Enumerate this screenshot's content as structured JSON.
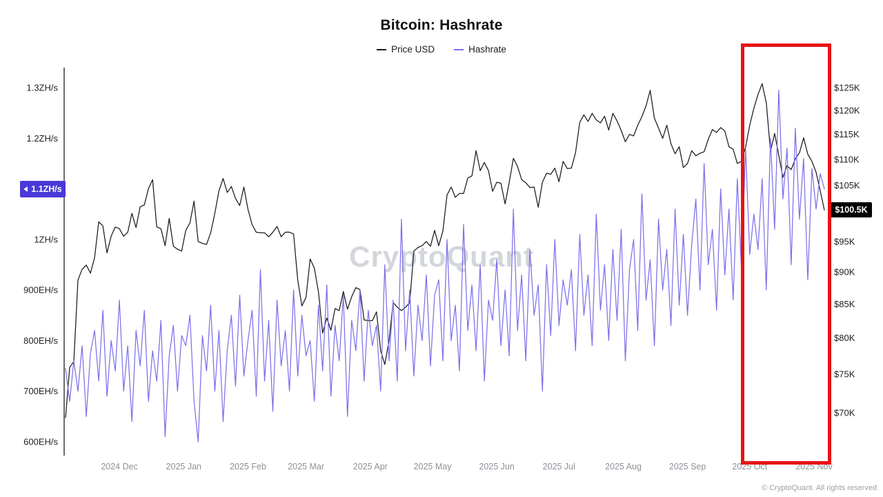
{
  "watermark": {
    "text": "CryptoQuant"
  },
  "footer": {
    "text": "© CryptoQuant. All rights reserved"
  },
  "colors": {
    "background": "#ffffff",
    "price_line": "#1a1a1a",
    "hashrate_line": "#7c70e9",
    "hashrate_badge": "#4a39d8",
    "price_badge": "#000000",
    "highlight_box": "#e81414",
    "axis_line": "#3c3c3c"
  },
  "chart_data": {
    "type": "line",
    "title": "Bitcoin: Hashrate",
    "x_start": "2024 Nov",
    "x_end": "2025 Nov",
    "interval_days": 2,
    "legend_position": "top-center",
    "grid": false,
    "axes": {
      "left": {
        "title": "Hashrate",
        "scale": "linear",
        "unit": "EH/s",
        "domain": [
          600,
          1300
        ],
        "ticks": [
          {
            "value": 600,
            "label": "600EH/s"
          },
          {
            "value": 700,
            "label": "700EH/s"
          },
          {
            "value": 800,
            "label": "800EH/s"
          },
          {
            "value": 900,
            "label": "900EH/s"
          },
          {
            "value": 1000,
            "label": "1ZH/s"
          },
          {
            "value": 1200,
            "label": "1.2ZH/s"
          },
          {
            "value": 1300,
            "label": "1.3ZH/s"
          }
        ],
        "current": {
          "value": 1100,
          "label": "1.1ZH/s"
        }
      },
      "right": {
        "title": "Price USD",
        "scale": "log",
        "unit": "USD (thousands)",
        "domain": [
          70,
          125
        ],
        "ticks": [
          {
            "value": 70,
            "label": "$70K"
          },
          {
            "value": 75,
            "label": "$75K"
          },
          {
            "value": 80,
            "label": "$80K"
          },
          {
            "value": 85,
            "label": "$85K"
          },
          {
            "value": 90,
            "label": "$90K"
          },
          {
            "value": 95,
            "label": "$95K"
          },
          {
            "value": 105,
            "label": "$105K"
          },
          {
            "value": 110,
            "label": "$110K"
          },
          {
            "value": 115,
            "label": "$115K"
          },
          {
            "value": 120,
            "label": "$120K"
          },
          {
            "value": 125,
            "label": "$125K"
          }
        ],
        "current": {
          "value": 100.5,
          "label": "$100.5K"
        }
      },
      "x": {
        "ticks": [
          {
            "pos": 13,
            "label": "2024 Dec"
          },
          {
            "pos": 28.5,
            "label": "2025 Jan"
          },
          {
            "pos": 44,
            "label": "2025 Feb"
          },
          {
            "pos": 58,
            "label": "2025 Mar"
          },
          {
            "pos": 73.5,
            "label": "2025 Apr"
          },
          {
            "pos": 88.5,
            "label": "2025 May"
          },
          {
            "pos": 104,
            "label": "2025 Jun"
          },
          {
            "pos": 119,
            "label": "2025 Jul"
          },
          {
            "pos": 134.5,
            "label": "2025 Aug"
          },
          {
            "pos": 150,
            "label": "2025 Sep"
          },
          {
            "pos": 165,
            "label": "2025 Oct"
          },
          {
            "pos": 180.5,
            "label": "2025 Nov"
          }
        ]
      }
    },
    "series": [
      {
        "name": "Price USD",
        "axis": "right",
        "color": "#1a1a1a",
        "unit": "USD thousands",
        "values": [
          69.4,
          75.9,
          76.7,
          88.7,
          90.4,
          91.1,
          89.8,
          92.3,
          98.4,
          97.7,
          93.1,
          95.9,
          97.5,
          97.2,
          95.9,
          96.6,
          99.9,
          97.4,
          101.1,
          101.4,
          104.4,
          106.1,
          97.5,
          97.2,
          94.3,
          99.0,
          94.2,
          93.7,
          93.4,
          96.9,
          98.2,
          102.1,
          95.0,
          94.7,
          94.5,
          96.5,
          99.9,
          104.0,
          106.3,
          103.7,
          104.8,
          102.6,
          101.3,
          104.7,
          100.6,
          97.9,
          96.6,
          96.5,
          96.5,
          95.8,
          96.6,
          97.6,
          95.8,
          96.6,
          96.6,
          96.3,
          88.7,
          84.7,
          86.0,
          92.1,
          90.6,
          86.8,
          80.7,
          82.9,
          81.1,
          84.3,
          84.0,
          86.9,
          84.2,
          86.1,
          87.5,
          87.2,
          82.6,
          82.5,
          82.5,
          83.8,
          78.2,
          76.3,
          79.6,
          85.2,
          84.5,
          84.0,
          84.5,
          85.2,
          93.4,
          94.0,
          94.3,
          95.0,
          94.2,
          96.9,
          94.3,
          96.8,
          103.2,
          104.7,
          102.8,
          103.5,
          103.5,
          106.4,
          106.8,
          111.7,
          107.8,
          109.4,
          107.8,
          103.9,
          105.6,
          105.4,
          101.6,
          105.6,
          110.2,
          108.6,
          106.1,
          105.5,
          104.6,
          104.7,
          101.0,
          105.6,
          107.3,
          107.1,
          108.3,
          105.7,
          109.6,
          108.2,
          108.3,
          111.3,
          117.5,
          119.1,
          117.7,
          119.4,
          118.0,
          117.4,
          118.8,
          115.9,
          119.4,
          117.8,
          115.8,
          113.5,
          115.0,
          114.7,
          116.9,
          118.7,
          121.0,
          124.4,
          118.4,
          116.3,
          114.2,
          116.9,
          113.1,
          111.1,
          112.5,
          108.4,
          109.2,
          111.7,
          110.7,
          111.2,
          111.5,
          114.0,
          116.0,
          115.4,
          116.4,
          115.7,
          112.5,
          112.0,
          109.2,
          109.6,
          112.4,
          116.9,
          120.5,
          123.5,
          125.9,
          121.7,
          111.6,
          115.2,
          110.8,
          106.5,
          108.8,
          108.0,
          110.1,
          111.3,
          114.3,
          111.0,
          109.6,
          107.5,
          104.0,
          100.5
        ]
      },
      {
        "name": "Hashrate",
        "axis": "left",
        "color": "#7c70e9",
        "unit": "EH/s",
        "values": [
          745,
          680,
          760,
          700,
          790,
          650,
          775,
          820,
          720,
          860,
          690,
          800,
          740,
          880,
          700,
          790,
          640,
          820,
          750,
          860,
          680,
          780,
          720,
          840,
          610,
          770,
          830,
          700,
          810,
          790,
          850,
          680,
          600,
          810,
          740,
          870,
          700,
          820,
          640,
          780,
          850,
          710,
          890,
          730,
          800,
          860,
          690,
          940,
          720,
          840,
          660,
          880,
          750,
          820,
          700,
          900,
          730,
          850,
          770,
          800,
          680,
          870,
          740,
          910,
          690,
          830,
          760,
          890,
          650,
          840,
          780,
          900,
          720,
          860,
          790,
          830,
          700,
          950,
          760,
          880,
          720,
          1040,
          780,
          900,
          730,
          870,
          800,
          930,
          750,
          890,
          920,
          760,
          1000,
          800,
          870,
          740,
          1030,
          820,
          910,
          780,
          950,
          720,
          880,
          840,
          960,
          790,
          900,
          770,
          1060,
          820,
          930,
          760,
          980,
          850,
          910,
          700,
          950,
          810,
          1000,
          830,
          920,
          870,
          940,
          780,
          1010,
          850,
          930,
          790,
          1050,
          860,
          950,
          800,
          980,
          840,
          1020,
          760,
          940,
          1000,
          820,
          1090,
          880,
          960,
          790,
          1040,
          900,
          980,
          830,
          1060,
          870,
          1010,
          850,
          990,
          1080,
          900,
          1150,
          950,
          1020,
          860,
          1100,
          930,
          1060,
          880,
          1120,
          940,
          1180,
          970,
          1050,
          980,
          1120,
          900,
          1200,
          1020,
          1295,
          1080,
          1180,
          950,
          1220,
          1040,
          1160,
          920,
          1140,
          1060,
          1130,
          1100
        ]
      }
    ]
  }
}
